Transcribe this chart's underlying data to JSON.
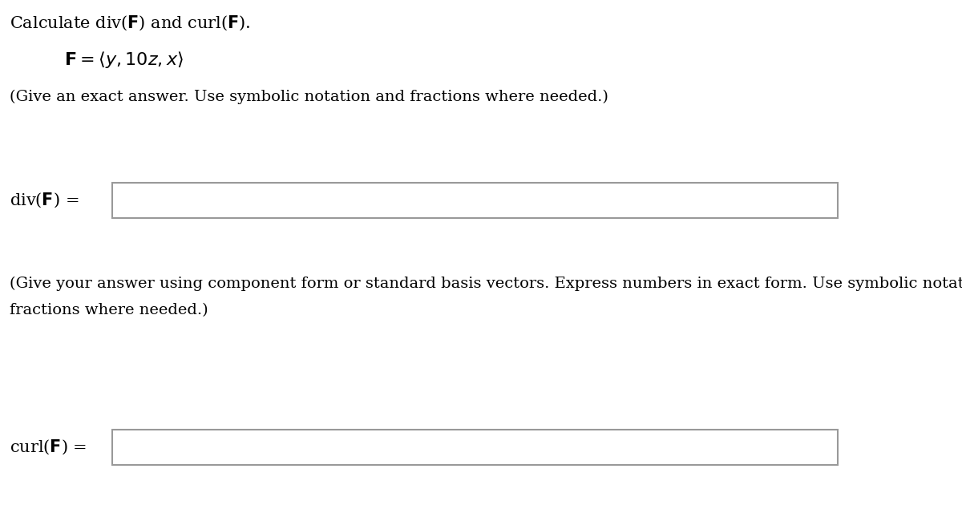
{
  "title_line_parts": [
    {
      "text": "Calculate div(",
      "bold": false
    },
    {
      "text": "F",
      "bold": true
    },
    {
      "text": ") and curl(",
      "bold": false
    },
    {
      "text": "F",
      "bold": true
    },
    {
      "text": ").",
      "bold": false
    }
  ],
  "note1": "(Give an exact answer. Use symbolic notation and fractions where needed.)",
  "div_label_parts": [
    {
      "text": "div(",
      "bold": false
    },
    {
      "text": "F",
      "bold": true
    },
    {
      "text": ") =",
      "bold": false
    }
  ],
  "note2_line1": "(Give your answer using component form or standard basis vectors. Express numbers in exact form. Use symbolic notation and",
  "note2_line2": "fractions where needed.)",
  "curl_label_parts": [
    {
      "text": "curl(",
      "bold": false
    },
    {
      "text": "F",
      "bold": true
    },
    {
      "text": ") =",
      "bold": false
    }
  ],
  "background_color": "#ffffff",
  "text_color": "#000000",
  "box_edge_color": "#999999",
  "box_fill_color": "#ffffff",
  "title_fontsize": 15,
  "formula_fontsize": 16,
  "note_fontsize": 14,
  "label_fontsize": 15
}
